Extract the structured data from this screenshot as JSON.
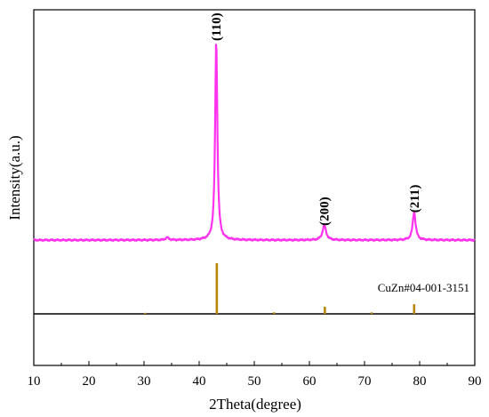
{
  "chart_data": {
    "type": "line",
    "xlabel": "2Theta(degree)",
    "ylabel": "Intensity(a.u.)",
    "xlim": [
      10,
      90
    ],
    "x_ticks": [
      10,
      20,
      30,
      40,
      50,
      60,
      70,
      80,
      90
    ],
    "grid": false,
    "series": [
      {
        "color": "#ff33ee",
        "baseline": 0.03,
        "peaks": [
          {
            "x": 34.2,
            "height": 0.012,
            "width": 0.35
          },
          {
            "x": 43.1,
            "height": 1.0,
            "width": 0.24
          },
          {
            "x": 62.7,
            "height": 0.075,
            "width": 0.38
          },
          {
            "x": 79.0,
            "height": 0.14,
            "width": 0.32
          }
        ]
      }
    ],
    "peak_labels": [
      {
        "x": 43.1,
        "y": 1.0,
        "text": "(110)"
      },
      {
        "x": 62.7,
        "y": 0.075,
        "text": "(200)"
      },
      {
        "x": 79.0,
        "y": 0.14,
        "text": "(211)"
      }
    ],
    "reference": {
      "label": "CuZn#04-001-3151",
      "color": "#b8860b",
      "sticks": [
        {
          "x": 30.2,
          "intensity": 0.02
        },
        {
          "x": 43.2,
          "intensity": 1.0
        },
        {
          "x": 53.6,
          "intensity": 0.03
        },
        {
          "x": 62.8,
          "intensity": 0.14
        },
        {
          "x": 71.3,
          "intensity": 0.03
        },
        {
          "x": 79.0,
          "intensity": 0.19
        }
      ]
    }
  }
}
